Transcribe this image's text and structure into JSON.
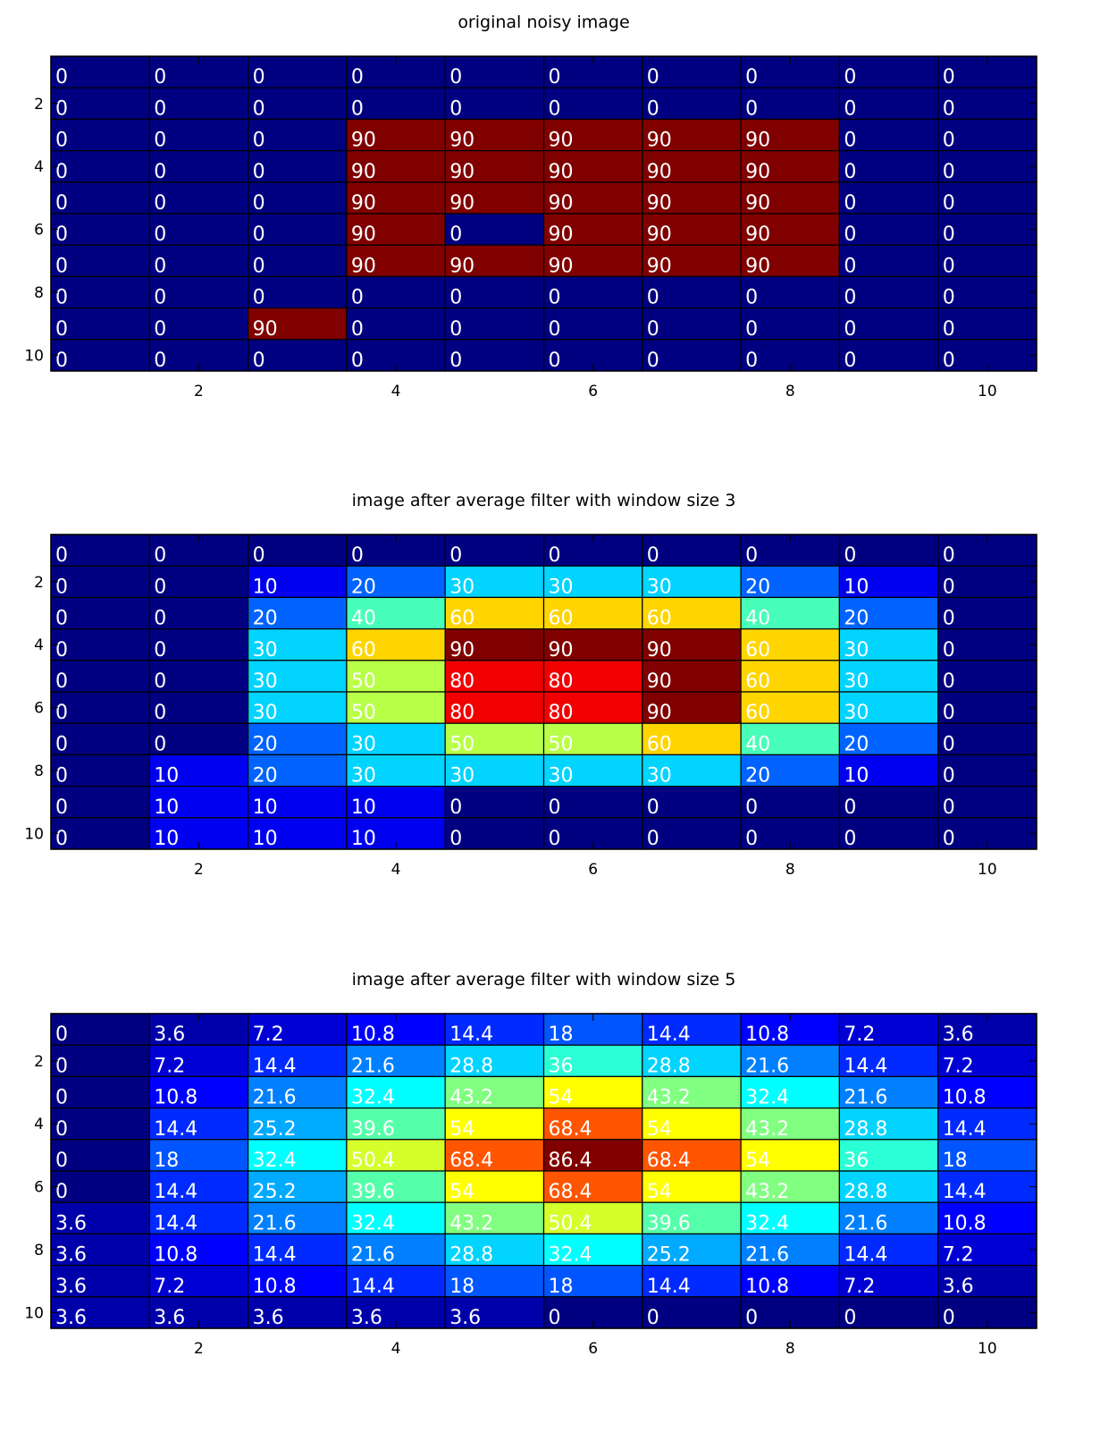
{
  "chart_data": [
    {
      "type": "heatmap",
      "title": "original noisy image",
      "x_ticks": [
        "2",
        "4",
        "6",
        "8",
        "10"
      ],
      "y_ticks": [
        "2",
        "4",
        "6",
        "8",
        "10"
      ],
      "xlim": [
        0.5,
        10.5
      ],
      "ylim": [
        0.5,
        10.5
      ],
      "clim": [
        0,
        90
      ],
      "colormap": "jet",
      "grid": true,
      "matrix": [
        [
          "0",
          "0",
          "0",
          "0",
          "0",
          "0",
          "0",
          "0",
          "0",
          "0"
        ],
        [
          "0",
          "0",
          "0",
          "0",
          "0",
          "0",
          "0",
          "0",
          "0",
          "0"
        ],
        [
          "0",
          "0",
          "0",
          "90",
          "90",
          "90",
          "90",
          "90",
          "0",
          "0"
        ],
        [
          "0",
          "0",
          "0",
          "90",
          "90",
          "90",
          "90",
          "90",
          "0",
          "0"
        ],
        [
          "0",
          "0",
          "0",
          "90",
          "90",
          "90",
          "90",
          "90",
          "0",
          "0"
        ],
        [
          "0",
          "0",
          "0",
          "90",
          "0",
          "90",
          "90",
          "90",
          "0",
          "0"
        ],
        [
          "0",
          "0",
          "0",
          "90",
          "90",
          "90",
          "90",
          "90",
          "0",
          "0"
        ],
        [
          "0",
          "0",
          "0",
          "0",
          "0",
          "0",
          "0",
          "0",
          "0",
          "0"
        ],
        [
          "0",
          "0",
          "90",
          "0",
          "0",
          "0",
          "0",
          "0",
          "0",
          "0"
        ],
        [
          "0",
          "0",
          "0",
          "0",
          "0",
          "0",
          "0",
          "0",
          "0",
          "0"
        ]
      ]
    },
    {
      "type": "heatmap",
      "title": "image after average filter with window size 3",
      "x_ticks": [
        "2",
        "4",
        "6",
        "8",
        "10"
      ],
      "y_ticks": [
        "2",
        "4",
        "6",
        "8",
        "10"
      ],
      "xlim": [
        0.5,
        10.5
      ],
      "ylim": [
        0.5,
        10.5
      ],
      "clim": [
        0,
        90
      ],
      "colormap": "jet",
      "grid": true,
      "matrix": [
        [
          "0",
          "0",
          "0",
          "0",
          "0",
          "0",
          "0",
          "0",
          "0",
          "0"
        ],
        [
          "0",
          "0",
          "10",
          "20",
          "30",
          "30",
          "30",
          "20",
          "10",
          "0"
        ],
        [
          "0",
          "0",
          "20",
          "40",
          "60",
          "60",
          "60",
          "40",
          "20",
          "0"
        ],
        [
          "0",
          "0",
          "30",
          "60",
          "90",
          "90",
          "90",
          "60",
          "30",
          "0"
        ],
        [
          "0",
          "0",
          "30",
          "50",
          "80",
          "80",
          "90",
          "60",
          "30",
          "0"
        ],
        [
          "0",
          "0",
          "30",
          "50",
          "80",
          "80",
          "90",
          "60",
          "30",
          "0"
        ],
        [
          "0",
          "0",
          "20",
          "30",
          "50",
          "50",
          "60",
          "40",
          "20",
          "0"
        ],
        [
          "0",
          "10",
          "20",
          "30",
          "30",
          "30",
          "30",
          "20",
          "10",
          "0"
        ],
        [
          "0",
          "10",
          "10",
          "10",
          "0",
          "0",
          "0",
          "0",
          "0",
          "0"
        ],
        [
          "0",
          "10",
          "10",
          "10",
          "0",
          "0",
          "0",
          "0",
          "0",
          "0"
        ]
      ]
    },
    {
      "type": "heatmap",
      "title": "image after average filter with window size 5",
      "x_ticks": [
        "2",
        "4",
        "6",
        "8",
        "10"
      ],
      "y_ticks": [
        "2",
        "4",
        "6",
        "8",
        "10"
      ],
      "xlim": [
        0.5,
        10.5
      ],
      "ylim": [
        0.5,
        10.5
      ],
      "clim": [
        0,
        86.4
      ],
      "colormap": "jet",
      "grid": true,
      "matrix": [
        [
          "0",
          "3.6",
          "7.2",
          "10.8",
          "14.4",
          "18",
          "14.4",
          "10.8",
          "7.2",
          "3.6"
        ],
        [
          "0",
          "7.2",
          "14.4",
          "21.6",
          "28.8",
          "36",
          "28.8",
          "21.6",
          "14.4",
          "7.2"
        ],
        [
          "0",
          "10.8",
          "21.6",
          "32.4",
          "43.2",
          "54",
          "43.2",
          "32.4",
          "21.6",
          "10.8"
        ],
        [
          "0",
          "14.4",
          "25.2",
          "39.6",
          "54",
          "68.4",
          "54",
          "43.2",
          "28.8",
          "14.4"
        ],
        [
          "0",
          "18",
          "32.4",
          "50.4",
          "68.4",
          "86.4",
          "68.4",
          "54",
          "36",
          "18"
        ],
        [
          "0",
          "14.4",
          "25.2",
          "39.6",
          "54",
          "68.4",
          "54",
          "43.2",
          "28.8",
          "14.4"
        ],
        [
          "3.6",
          "14.4",
          "21.6",
          "32.4",
          "43.2",
          "50.4",
          "39.6",
          "32.4",
          "21.6",
          "10.8"
        ],
        [
          "3.6",
          "10.8",
          "14.4",
          "21.6",
          "28.8",
          "32.4",
          "25.2",
          "21.6",
          "14.4",
          "7.2"
        ],
        [
          "3.6",
          "7.2",
          "10.8",
          "14.4",
          "18",
          "18",
          "14.4",
          "10.8",
          "7.2",
          "3.6"
        ],
        [
          "3.6",
          "3.6",
          "3.6",
          "3.6",
          "3.6",
          "0",
          "0",
          "0",
          "0",
          "0"
        ]
      ]
    }
  ]
}
